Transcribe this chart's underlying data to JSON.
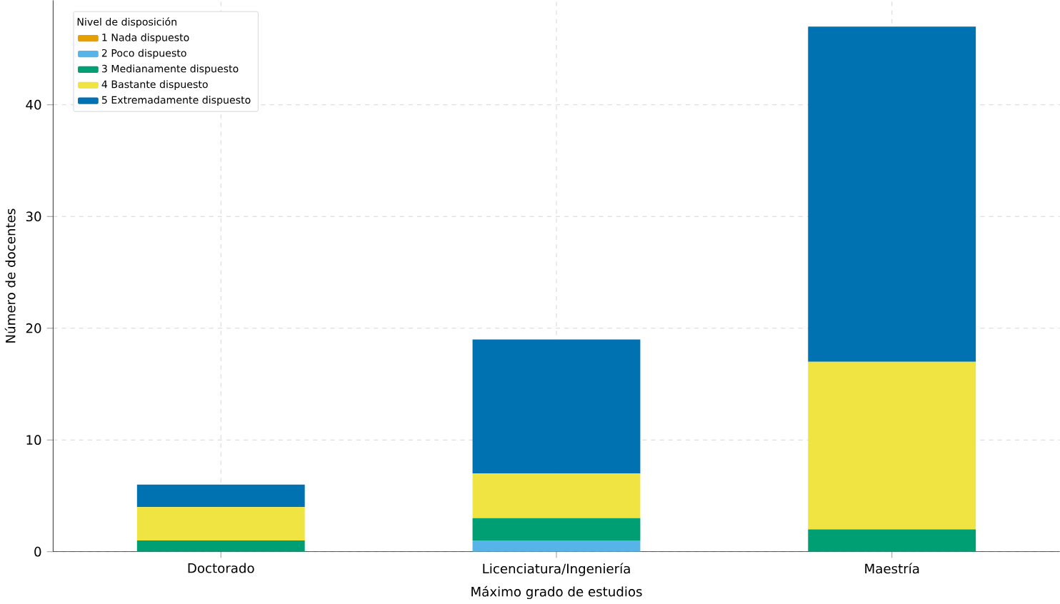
{
  "chart_data": {
    "type": "bar",
    "stacked": true,
    "xlabel": "Máximo grado de estudios",
    "ylabel": "Número de docentes",
    "legend_title": "Nivel de disposición",
    "categories": [
      "Doctorado",
      "Licenciatura/Ingeniería",
      "Maestría"
    ],
    "series": [
      {
        "name": "1 Nada dispuesto",
        "color": "#e69f00",
        "values": [
          0,
          0,
          0
        ]
      },
      {
        "name": "2 Poco dispuesto",
        "color": "#56b4e9",
        "values": [
          0,
          1,
          0
        ]
      },
      {
        "name": "3 Medianamente dispuesto",
        "color": "#009e73",
        "values": [
          1,
          2,
          2
        ]
      },
      {
        "name": "4 Bastante dispuesto",
        "color": "#f0e442",
        "values": [
          3,
          4,
          15
        ]
      },
      {
        "name": "5 Extremadamente dispuesto",
        "color": "#0072b2",
        "values": [
          2,
          12,
          30
        ]
      }
    ],
    "ylim": [
      0,
      49.35
    ],
    "yticks": [
      0,
      10,
      20,
      30,
      40
    ],
    "grid": true,
    "legend": "top left"
  }
}
